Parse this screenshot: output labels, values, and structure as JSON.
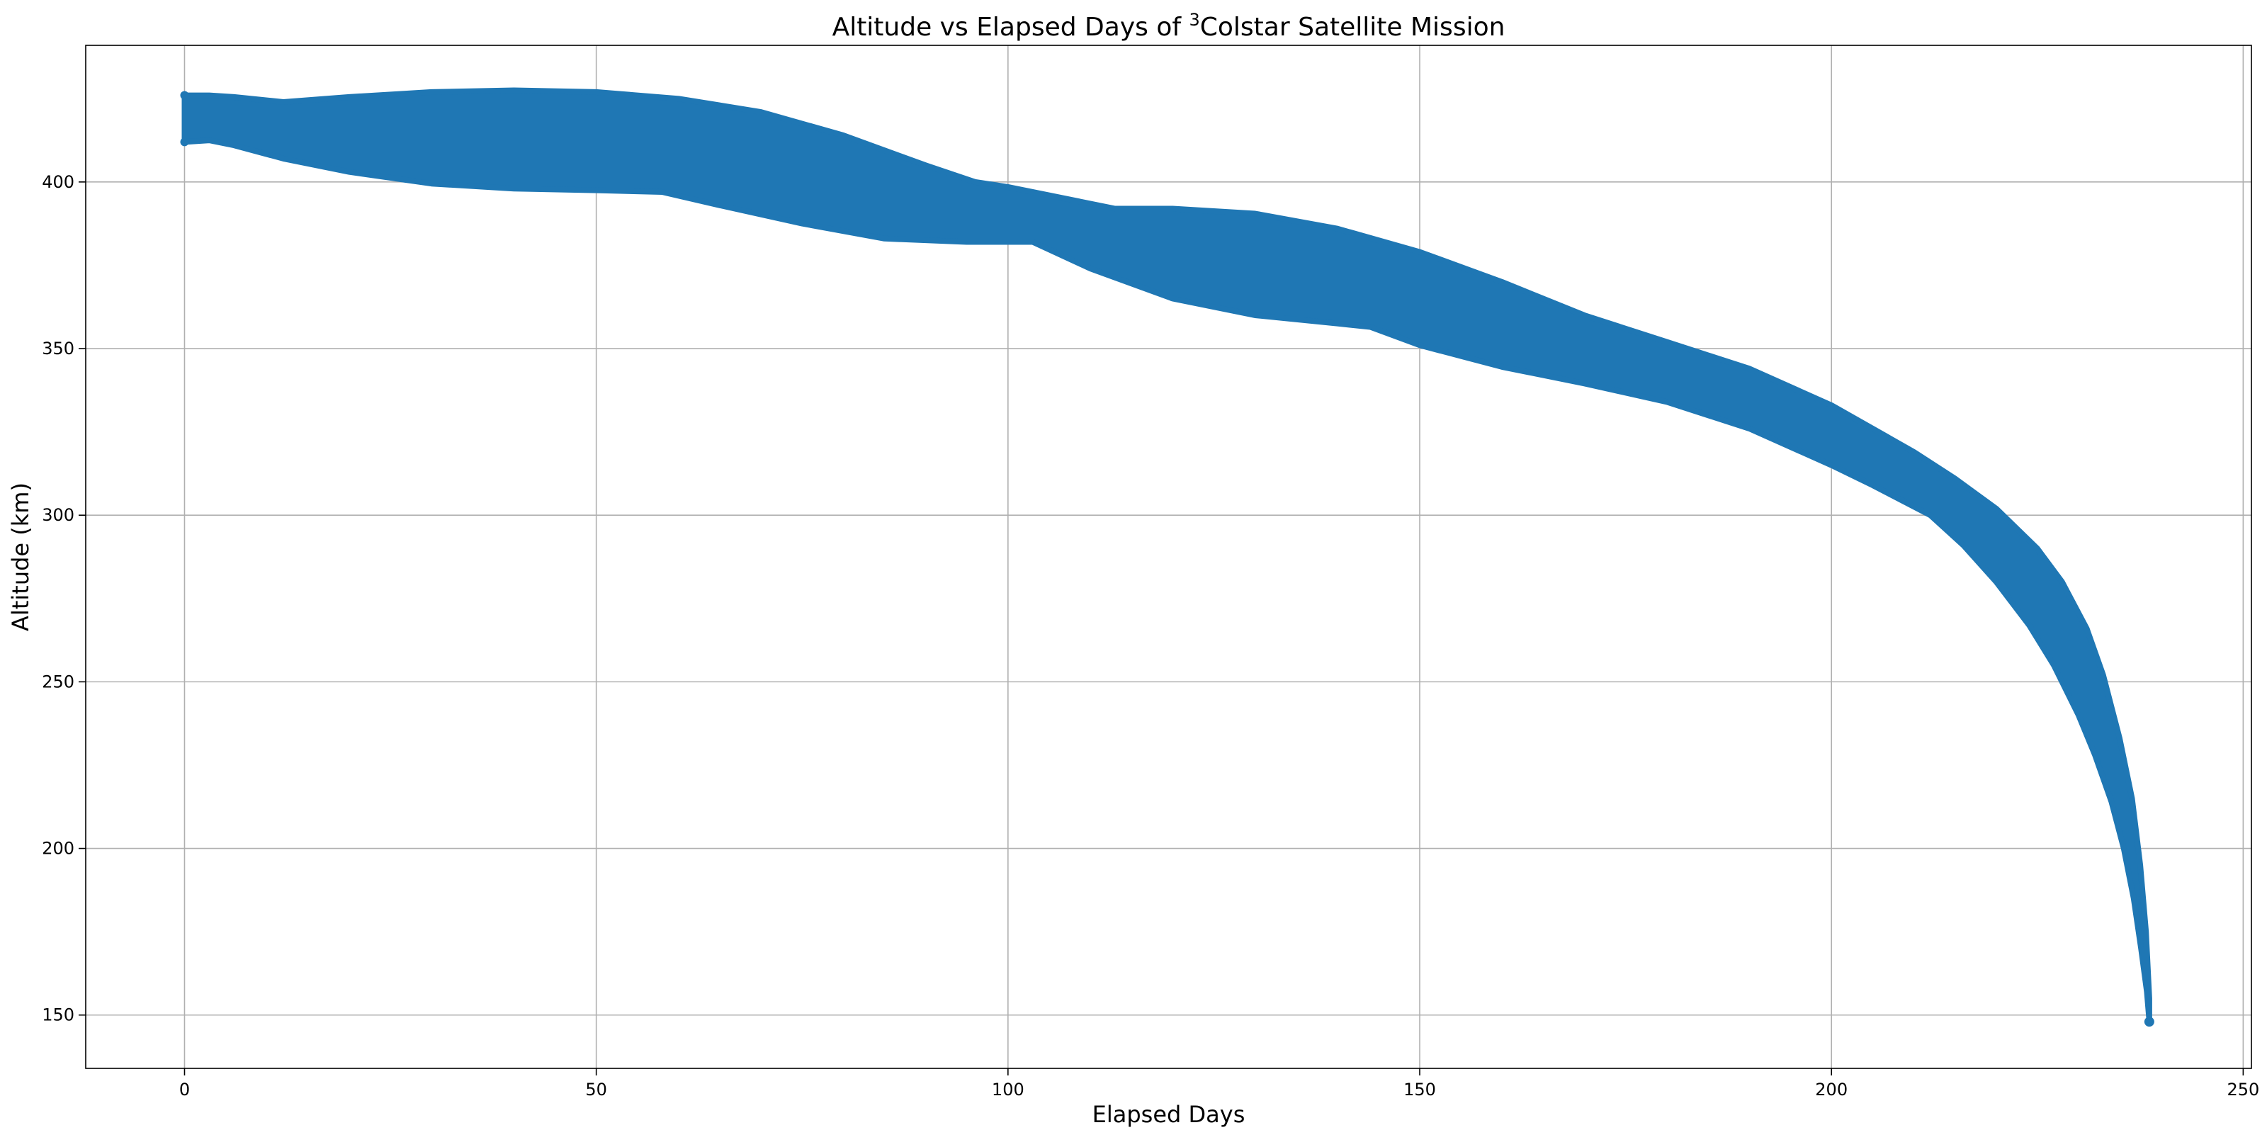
{
  "chart_data": {
    "type": "scatter",
    "title": {
      "prefix": "Altitude vs Elapsed Days of ",
      "superscript": "3",
      "suffix": "Colstar Satellite Mission"
    },
    "xlabel": "Elapsed Days",
    "ylabel": "Altitude (km)",
    "xlim": [
      -12,
      251
    ],
    "ylim": [
      134,
      441
    ],
    "xticks": [
      0,
      50,
      100,
      150,
      200,
      250
    ],
    "xtick_labels": [
      "0",
      "50",
      "100",
      "150",
      "200",
      "250"
    ],
    "yticks": [
      150,
      200,
      250,
      300,
      350,
      400
    ],
    "ytick_labels": [
      "150",
      "200",
      "250",
      "300",
      "350",
      "400"
    ],
    "grid": true,
    "series": [
      {
        "name": "Altitude",
        "color": "#1f77b4",
        "marker": "circle",
        "upper_envelope": {
          "x": [
            0,
            3,
            6,
            12,
            20,
            30,
            40,
            50,
            60,
            70,
            80,
            90,
            96,
            100,
            105,
            113,
            120,
            130,
            140,
            150,
            160,
            170,
            180,
            190,
            200,
            210,
            215,
            220,
            225,
            228,
            231,
            233,
            235,
            236.5,
            237.5,
            238.2,
            238.6
          ],
          "y": [
            426,
            426,
            425.5,
            424,
            425.5,
            427,
            427.5,
            427,
            425,
            421,
            414,
            405,
            400,
            398.5,
            396,
            392,
            392,
            390.5,
            386,
            379,
            370,
            360,
            352,
            344,
            333,
            319,
            311,
            302,
            290,
            280,
            266,
            252,
            233,
            215,
            195,
            175,
            155
          ]
        },
        "lower_envelope": {
          "x": [
            0,
            3,
            6,
            12,
            20,
            30,
            40,
            50,
            58,
            65,
            75,
            85,
            95,
            103,
            110,
            120,
            130,
            140,
            144,
            150,
            160,
            170,
            180,
            190,
            200,
            205,
            212,
            216,
            220,
            224,
            227,
            230,
            232,
            234,
            235.5,
            236.7,
            237.6,
            238.3,
            238.6
          ],
          "y": [
            412,
            412.5,
            411,
            407,
            403,
            399.5,
            398,
            397.5,
            397,
            393,
            387.5,
            383,
            382,
            382,
            374,
            365,
            360,
            357.5,
            356.5,
            351,
            344.5,
            339.5,
            334,
            326,
            315,
            309,
            300,
            291,
            280,
            267,
            255,
            240,
            228,
            214,
            200,
            185,
            170,
            157,
            148
          ]
        },
        "x_range": [
          0,
          238.6
        ],
        "y_range": [
          148,
          427.5
        ]
      }
    ]
  }
}
